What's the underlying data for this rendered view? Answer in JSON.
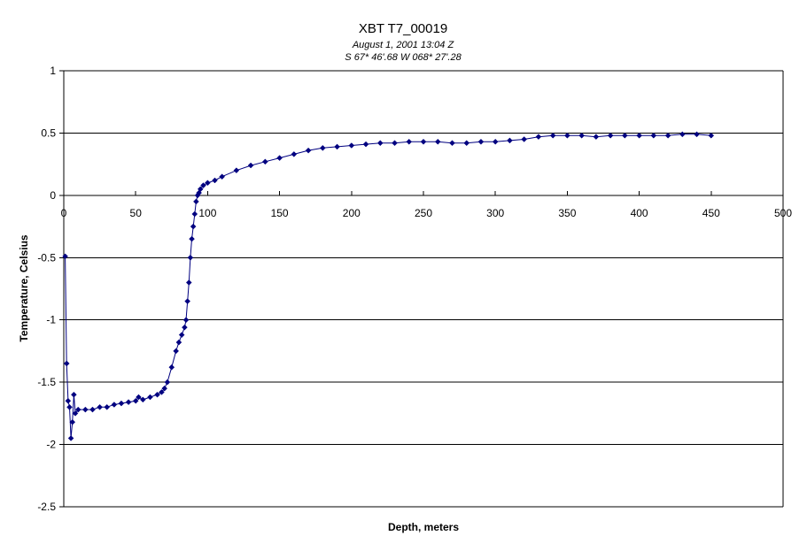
{
  "chart_data": {
    "type": "line",
    "title": "XBT T7_00019",
    "subtitle_lines": [
      "August 1, 2001  13:04 Z",
      "S 67* 46'.68  W 068* 27'.28"
    ],
    "xlabel": "Depth, meters",
    "ylabel": "Temperature, Celsius",
    "xlim": [
      0,
      500
    ],
    "ylim": [
      -2.5,
      1
    ],
    "x_ticks": [
      0,
      50,
      100,
      150,
      200,
      250,
      300,
      350,
      400,
      450,
      500
    ],
    "y_ticks": [
      1,
      0.5,
      0,
      -0.5,
      -1,
      -1.5,
      -2,
      -2.5
    ],
    "x_tick_labels": [
      "0",
      "50",
      "100",
      "150",
      "200",
      "250",
      "300",
      "350",
      "400",
      "450",
      "500"
    ],
    "y_tick_labels": [
      "1",
      "0.5",
      "0",
      "-0.5",
      "-1",
      "-1.5",
      "-2",
      "-2.5"
    ],
    "grid": "horizontal",
    "series_color": "#000080",
    "marker": "diamond",
    "series": [
      {
        "x": [
          1,
          2,
          3,
          4,
          5,
          6,
          7,
          8,
          10,
          15,
          20,
          25,
          30,
          35,
          40,
          45,
          50,
          52,
          55,
          60,
          65,
          68,
          70,
          72,
          75,
          78,
          80,
          82,
          84,
          85,
          86,
          87,
          88,
          89,
          90,
          91,
          92,
          93,
          94,
          95,
          97,
          100,
          105,
          110,
          120,
          130,
          140,
          150,
          160,
          170,
          180,
          190,
          200,
          210,
          220,
          230,
          240,
          250,
          260,
          270,
          280,
          290,
          300,
          310,
          320,
          330,
          340,
          350,
          360,
          370,
          380,
          390,
          400,
          410,
          420,
          430,
          440,
          450
        ],
        "y": [
          -0.49,
          -1.35,
          -1.65,
          -1.7,
          -1.95,
          -1.82,
          -1.6,
          -1.75,
          -1.72,
          -1.72,
          -1.72,
          -1.7,
          -1.7,
          -1.68,
          -1.67,
          -1.66,
          -1.65,
          -1.62,
          -1.64,
          -1.62,
          -1.6,
          -1.58,
          -1.55,
          -1.5,
          -1.38,
          -1.25,
          -1.18,
          -1.12,
          -1.06,
          -1.0,
          -0.85,
          -0.7,
          -0.5,
          -0.35,
          -0.25,
          -0.15,
          -0.05,
          0.0,
          0.02,
          0.05,
          0.08,
          0.1,
          0.12,
          0.15,
          0.2,
          0.24,
          0.27,
          0.3,
          0.33,
          0.36,
          0.38,
          0.39,
          0.4,
          0.41,
          0.42,
          0.42,
          0.43,
          0.43,
          0.43,
          0.42,
          0.42,
          0.43,
          0.43,
          0.44,
          0.45,
          0.47,
          0.48,
          0.48,
          0.48,
          0.47,
          0.48,
          0.48,
          0.48,
          0.48,
          0.48,
          0.49,
          0.49,
          0.48
        ]
      }
    ]
  }
}
